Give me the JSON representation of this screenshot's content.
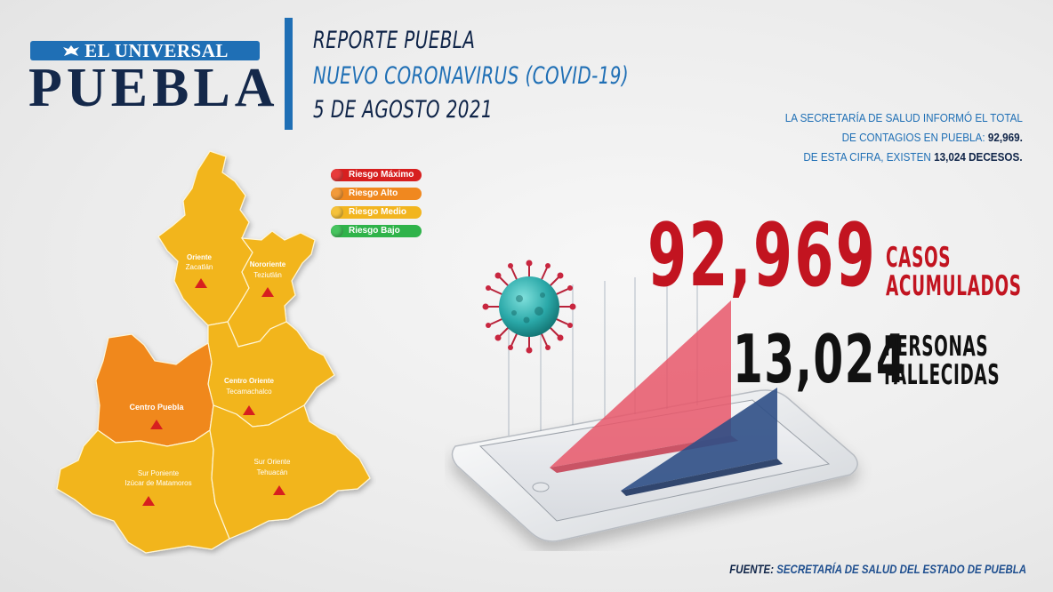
{
  "logo": {
    "brand": "EL UNIVERSAL",
    "city": "PUEBLA"
  },
  "header": {
    "line1": "REPORTE PUEBLA",
    "line2": "NUEVO CORONAVIRUS (COVID-19)",
    "line3": "5 DE AGOSTO 2021"
  },
  "info": {
    "line1": "LA SECRETARÍA DE SALUD  INFORMÓ EL TOTAL",
    "line2_prefix": "DE CONTAGIOS EN PUEBLA: ",
    "line2_value": "92,969.",
    "line3_prefix": "DE ESTA CIFRA, EXISTEN ",
    "line3_value": "13,024 DECESOS."
  },
  "legend": [
    {
      "label": "Riesgo Máximo",
      "color": "#d71f1f"
    },
    {
      "label": "Riesgo Alto",
      "color": "#f0881f"
    },
    {
      "label": "Riesgo Medio",
      "color": "#f2b51f"
    },
    {
      "label": "Riesgo Bajo",
      "color": "#2fb34a"
    }
  ],
  "map": {
    "regions": [
      {
        "name": "Oriente",
        "sub": "Zacatlán",
        "risk": "Riesgo Medio"
      },
      {
        "name": "Nororiente",
        "sub": "Teziutlán",
        "risk": "Riesgo Medio"
      },
      {
        "name": "Centro Oriente",
        "sub": "Tecamachalco",
        "risk": "Riesgo Medio"
      },
      {
        "name": "Centro  Puebla",
        "sub": "",
        "risk": "Riesgo Alto"
      },
      {
        "name": "Sur Poniente",
        "sub": "Izúcar de Matamoros",
        "risk": "Riesgo Medio"
      },
      {
        "name": "Sur Oriente",
        "sub": "Tehuacán",
        "risk": "Riesgo Medio"
      }
    ],
    "colors": {
      "medio": "#f2b51f",
      "alto": "#f0881f",
      "marker": "#d71f1f"
    }
  },
  "stats": {
    "cases_value": "92,969",
    "cases_label1": "CASOS",
    "cases_label2": "ACUMULADOS",
    "deaths_value": "13,024",
    "deaths_label1": "PERSONAS",
    "deaths_label2": "FALLECIDAS"
  },
  "source": {
    "prefix": "FUENTE: ",
    "text": "SECRETARÍA DE SALUD DEL ESTADO DE PUEBLA"
  },
  "colors": {
    "brand_blue": "#1f6fb5",
    "navy": "#0f2448",
    "red": "#c21420"
  }
}
